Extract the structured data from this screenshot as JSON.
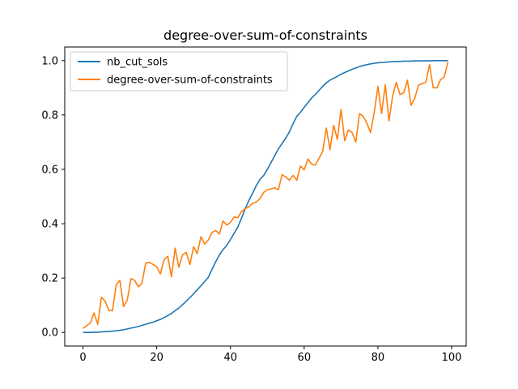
{
  "chart_data": {
    "type": "line",
    "title": "degree-over-sum-of-constraints",
    "xlabel": "",
    "ylabel": "",
    "xlim": [
      -4.95,
      103.95
    ],
    "ylim": [
      -0.05,
      1.05
    ],
    "xticks": [
      0,
      20,
      40,
      60,
      80,
      100
    ],
    "yticks": [
      0.0,
      0.2,
      0.4,
      0.6,
      0.8,
      1.0
    ],
    "xtick_labels": [
      "0",
      "20",
      "40",
      "60",
      "80",
      "100"
    ],
    "ytick_labels": [
      "0.0",
      "0.2",
      "0.4",
      "0.6",
      "0.8",
      "1.0"
    ],
    "grid": false,
    "legend_position": "top-left",
    "series": [
      {
        "name": "nb_cut_sols",
        "color": "#1f77b4",
        "x": [
          0,
          1,
          2,
          3,
          4,
          5,
          6,
          7,
          8,
          9,
          10,
          11,
          12,
          13,
          14,
          15,
          16,
          17,
          18,
          19,
          20,
          21,
          22,
          23,
          24,
          25,
          26,
          27,
          28,
          29,
          30,
          31,
          32,
          33,
          34,
          35,
          36,
          37,
          38,
          39,
          40,
          41,
          42,
          43,
          44,
          45,
          46,
          47,
          48,
          49,
          50,
          51,
          52,
          53,
          54,
          55,
          56,
          57,
          58,
          59,
          60,
          61,
          62,
          63,
          64,
          65,
          66,
          67,
          68,
          69,
          70,
          71,
          72,
          73,
          74,
          75,
          76,
          77,
          78,
          79,
          80,
          81,
          82,
          83,
          84,
          85,
          86,
          87,
          88,
          89,
          90,
          91,
          92,
          93,
          94,
          95,
          96,
          97,
          98,
          99
        ],
        "y": [
          0.0,
          0.0,
          0.0,
          0.001,
          0.001,
          0.002,
          0.003,
          0.004,
          0.005,
          0.006,
          0.008,
          0.01,
          0.013,
          0.016,
          0.019,
          0.022,
          0.026,
          0.03,
          0.034,
          0.038,
          0.043,
          0.048,
          0.055,
          0.062,
          0.07,
          0.08,
          0.09,
          0.102,
          0.115,
          0.128,
          0.142,
          0.157,
          0.172,
          0.187,
          0.203,
          0.232,
          0.26,
          0.285,
          0.305,
          0.32,
          0.342,
          0.365,
          0.388,
          0.42,
          0.455,
          0.485,
          0.512,
          0.54,
          0.563,
          0.577,
          0.6,
          0.625,
          0.65,
          0.675,
          0.695,
          0.715,
          0.738,
          0.768,
          0.795,
          0.81,
          0.828,
          0.845,
          0.862,
          0.875,
          0.89,
          0.905,
          0.918,
          0.928,
          0.935,
          0.942,
          0.95,
          0.956,
          0.962,
          0.968,
          0.973,
          0.978,
          0.982,
          0.985,
          0.988,
          0.99,
          0.992,
          0.993,
          0.994,
          0.995,
          0.996,
          0.997,
          0.997,
          0.998,
          0.998,
          0.998,
          0.999,
          0.999,
          0.999,
          0.999,
          0.999,
          1.0,
          1.0,
          1.0,
          1.0,
          1.0
        ]
      },
      {
        "name": "degree-over-sum-of-constraints",
        "color": "#ff7f0e",
        "x": [
          0,
          1,
          2,
          3,
          4,
          5,
          6,
          7,
          8,
          9,
          10,
          11,
          12,
          13,
          14,
          15,
          16,
          17,
          18,
          19,
          20,
          21,
          22,
          23,
          24,
          25,
          26,
          27,
          28,
          29,
          30,
          31,
          32,
          33,
          34,
          35,
          36,
          37,
          38,
          39,
          40,
          41,
          42,
          43,
          44,
          45,
          46,
          47,
          48,
          49,
          50,
          51,
          52,
          53,
          54,
          55,
          56,
          57,
          58,
          59,
          60,
          61,
          62,
          63,
          64,
          65,
          66,
          67,
          68,
          69,
          70,
          71,
          72,
          73,
          74,
          75,
          76,
          77,
          78,
          79,
          80,
          81,
          82,
          83,
          84,
          85,
          86,
          87,
          88,
          89,
          90,
          91,
          92,
          93,
          94,
          95,
          96,
          97,
          98,
          99
        ],
        "y": [
          0.015,
          0.025,
          0.035,
          0.072,
          0.03,
          0.13,
          0.115,
          0.082,
          0.08,
          0.175,
          0.192,
          0.095,
          0.118,
          0.198,
          0.192,
          0.168,
          0.18,
          0.255,
          0.258,
          0.25,
          0.242,
          0.215,
          0.268,
          0.28,
          0.205,
          0.31,
          0.24,
          0.285,
          0.295,
          0.25,
          0.315,
          0.29,
          0.352,
          0.325,
          0.34,
          0.368,
          0.375,
          0.362,
          0.41,
          0.395,
          0.405,
          0.425,
          0.422,
          0.445,
          0.455,
          0.462,
          0.475,
          0.48,
          0.492,
          0.515,
          0.525,
          0.528,
          0.532,
          0.525,
          0.58,
          0.572,
          0.56,
          0.578,
          0.56,
          0.612,
          0.598,
          0.638,
          0.62,
          0.615,
          0.64,
          0.665,
          0.752,
          0.672,
          0.762,
          0.71,
          0.82,
          0.705,
          0.745,
          0.735,
          0.7,
          0.805,
          0.795,
          0.77,
          0.735,
          0.81,
          0.905,
          0.805,
          0.912,
          0.778,
          0.87,
          0.92,
          0.875,
          0.882,
          0.928,
          0.835,
          0.862,
          0.91,
          0.915,
          0.92,
          0.985,
          0.9,
          0.9,
          0.93,
          0.94,
          0.995
        ]
      }
    ]
  }
}
